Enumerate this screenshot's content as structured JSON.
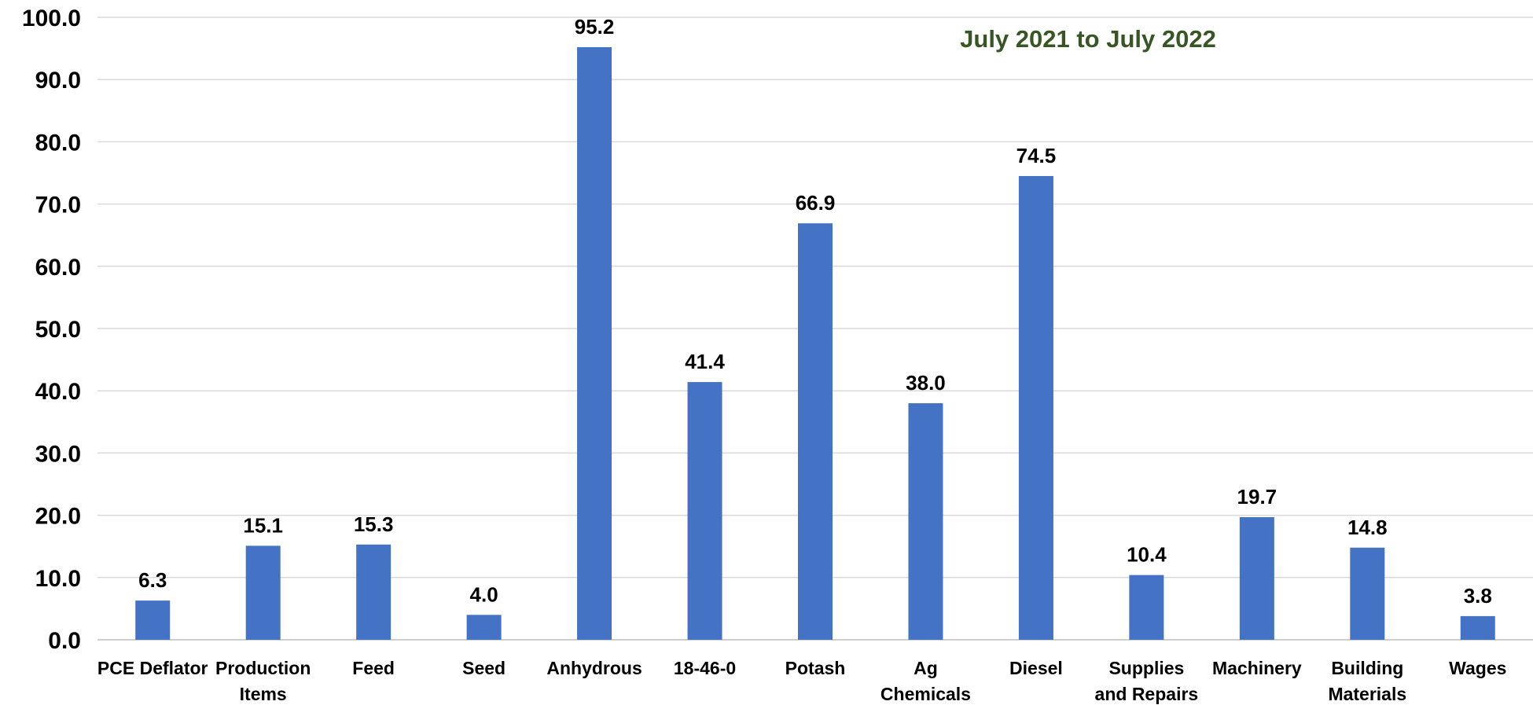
{
  "chart_data": {
    "type": "bar",
    "title": "",
    "annotation": "July 2021 to July 2022",
    "xlabel": "",
    "ylabel": "",
    "ylim": [
      0,
      100
    ],
    "yticks": [
      "0.0",
      "10.0",
      "20.0",
      "30.0",
      "40.0",
      "50.0",
      "60.0",
      "70.0",
      "80.0",
      "90.0",
      "100.0"
    ],
    "grid": true,
    "categories": [
      [
        "PCE Deflator"
      ],
      [
        "Production",
        "Items"
      ],
      [
        "Feed"
      ],
      [
        "Seed"
      ],
      [
        "Anhydrous"
      ],
      [
        "18-46-0"
      ],
      [
        "Potash"
      ],
      [
        "Ag",
        "Chemicals"
      ],
      [
        "Diesel"
      ],
      [
        "Supplies",
        "and Repairs"
      ],
      [
        "Machinery"
      ],
      [
        "Building",
        "Materials"
      ],
      [
        "Wages"
      ]
    ],
    "values": [
      6.3,
      15.1,
      15.3,
      4.0,
      95.2,
      41.4,
      66.9,
      38.0,
      74.5,
      10.4,
      19.7,
      14.8,
      3.8
    ],
    "data_labels": [
      "6.3",
      "15.1",
      "15.3",
      "4.0",
      "95.2",
      "41.4",
      "66.9",
      "38.0",
      "74.5",
      "10.4",
      "19.7",
      "14.8",
      "3.8"
    ],
    "colors": {
      "bar": "#4472c4",
      "annotation": "#375623"
    }
  }
}
